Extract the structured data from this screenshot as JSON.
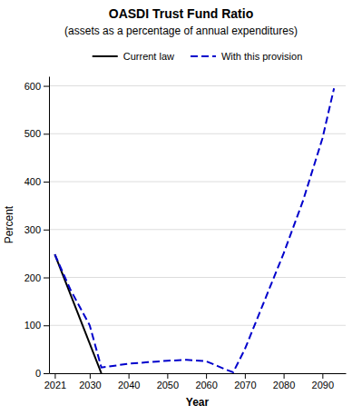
{
  "chart_data": {
    "type": "line",
    "title": "OASDI Trust Fund Ratio",
    "subtitle": "(assets as a percentage of annual expenditures)",
    "xlabel": "Year",
    "ylabel": "Percent",
    "xlim": [
      2019.5,
      2096
    ],
    "xticks": [
      2021,
      2030,
      2040,
      2050,
      2060,
      2070,
      2080,
      2090
    ],
    "ylim": [
      0,
      620
    ],
    "yticks": [
      0,
      100,
      200,
      300,
      400,
      500,
      600
    ],
    "grid": "y",
    "legend": "top",
    "series": [
      {
        "name": "Current law",
        "color": "#000000",
        "line_style": "solid",
        "x": [
          2021,
          2033
        ],
        "values": [
          248,
          0
        ]
      },
      {
        "name": "With this provision",
        "color": "#0000cc",
        "line_style": "dashed",
        "x": [
          2021,
          2025,
          2030,
          2033,
          2035,
          2040,
          2045,
          2050,
          2055,
          2060,
          2063,
          2065,
          2067,
          2070,
          2075,
          2080,
          2085,
          2090,
          2093
        ],
        "values": [
          248,
          175,
          100,
          12,
          14,
          20,
          23,
          26,
          28,
          25,
          15,
          8,
          2,
          50,
          150,
          250,
          360,
          490,
          595
        ]
      }
    ]
  }
}
